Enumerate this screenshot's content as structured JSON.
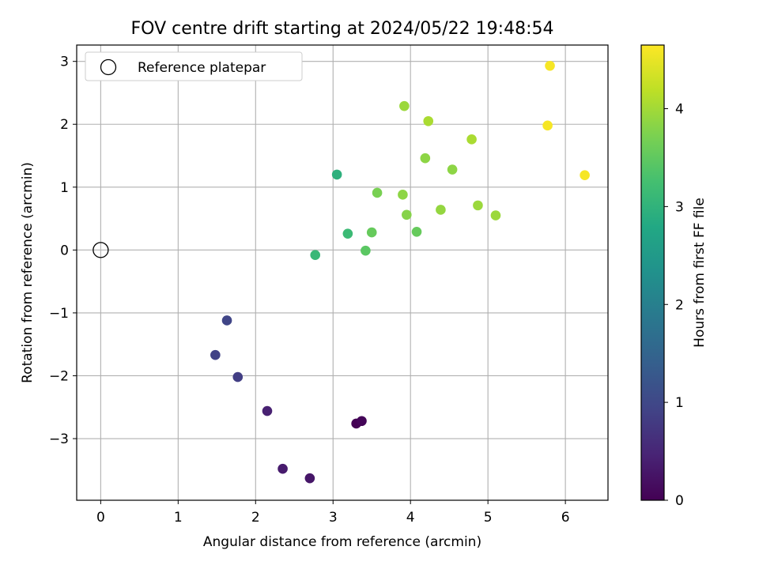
{
  "chart_data": {
    "type": "scatter",
    "title": "FOV centre drift starting at 2024/05/22 19:48:54",
    "xlabel": "Angular distance from reference (arcmin)",
    "ylabel": "Rotation from reference (arcmin)",
    "xlim": [
      -0.31,
      6.55
    ],
    "ylim": [
      -3.98,
      3.26
    ],
    "xticks": [
      0,
      1,
      2,
      3,
      4,
      5,
      6
    ],
    "yticks": [
      -3,
      -2,
      -1,
      0,
      1,
      2,
      3
    ],
    "xtick_labels": [
      "0",
      "1",
      "2",
      "3",
      "4",
      "5",
      "6"
    ],
    "ytick_labels": [
      "−3",
      "−2",
      "−1",
      "0",
      "1",
      "2",
      "3"
    ],
    "grid": true,
    "legend": {
      "position": "top-left",
      "entries": [
        "Reference platepar"
      ]
    },
    "reference_point": {
      "x": 0,
      "y": 0
    },
    "colorbar": {
      "label": "Hours from first FF file",
      "range": [
        0,
        4.65
      ],
      "ticks": [
        0,
        1,
        2,
        3,
        4
      ],
      "tick_labels": [
        "0",
        "1",
        "2",
        "3",
        "4"
      ],
      "colormap": "viridis"
    },
    "points": [
      {
        "x": 3.3,
        "y": -2.76,
        "c": 0.0
      },
      {
        "x": 3.37,
        "y": -2.72,
        "c": 0.05
      },
      {
        "x": 2.7,
        "y": -3.63,
        "c": 0.28
      },
      {
        "x": 2.35,
        "y": -3.48,
        "c": 0.35
      },
      {
        "x": 2.15,
        "y": -2.56,
        "c": 0.42
      },
      {
        "x": 1.77,
        "y": -2.02,
        "c": 0.85
      },
      {
        "x": 1.48,
        "y": -1.67,
        "c": 0.9
      },
      {
        "x": 1.63,
        "y": -1.12,
        "c": 0.95
      },
      {
        "x": 3.05,
        "y": 1.2,
        "c": 2.95
      },
      {
        "x": 2.77,
        "y": -0.08,
        "c": 3.1
      },
      {
        "x": 3.19,
        "y": 0.26,
        "c": 3.15
      },
      {
        "x": 3.42,
        "y": -0.01,
        "c": 3.45
      },
      {
        "x": 3.5,
        "y": 0.28,
        "c": 3.55
      },
      {
        "x": 4.08,
        "y": 0.29,
        "c": 3.55
      },
      {
        "x": 3.57,
        "y": 0.91,
        "c": 3.7
      },
      {
        "x": 3.95,
        "y": 0.56,
        "c": 3.8
      },
      {
        "x": 3.9,
        "y": 0.88,
        "c": 3.85
      },
      {
        "x": 4.19,
        "y": 1.46,
        "c": 3.85
      },
      {
        "x": 4.54,
        "y": 1.28,
        "c": 3.85
      },
      {
        "x": 4.39,
        "y": 0.64,
        "c": 3.9
      },
      {
        "x": 3.92,
        "y": 2.29,
        "c": 3.95
      },
      {
        "x": 4.87,
        "y": 0.71,
        "c": 3.95
      },
      {
        "x": 5.1,
        "y": 0.55,
        "c": 3.95
      },
      {
        "x": 4.23,
        "y": 2.05,
        "c": 4.05
      },
      {
        "x": 4.79,
        "y": 1.76,
        "c": 4.05
      },
      {
        "x": 5.77,
        "y": 1.98,
        "c": 4.6
      },
      {
        "x": 5.8,
        "y": 2.93,
        "c": 4.6
      },
      {
        "x": 6.25,
        "y": 1.19,
        "c": 4.6
      }
    ]
  }
}
